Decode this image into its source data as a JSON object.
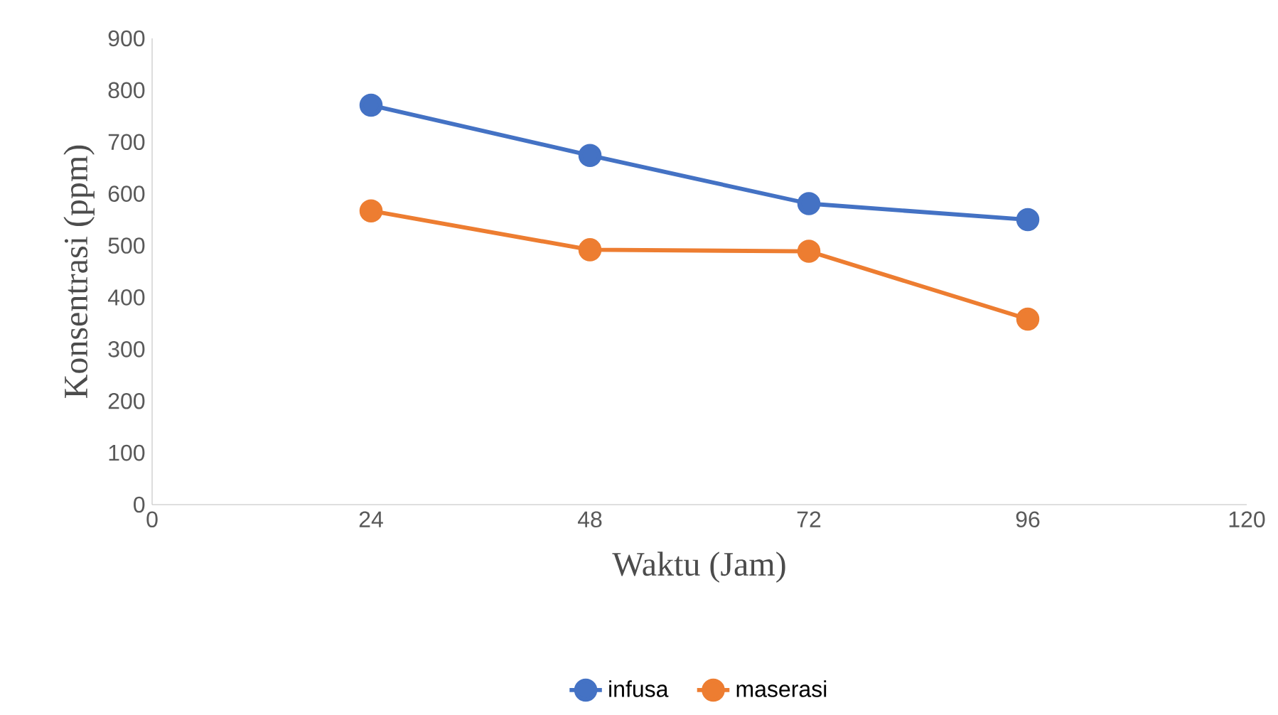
{
  "chart_data": {
    "type": "line",
    "xlabel": "Waktu (Jam)",
    "ylabel": "Konsentrasi (ppm)",
    "x": [
      24,
      48,
      72,
      96
    ],
    "series": [
      {
        "name": "infusa",
        "color": "#4472c4",
        "values": [
          771,
          674,
          581,
          550
        ]
      },
      {
        "name": "maserasi",
        "color": "#ed7d31",
        "values": [
          567,
          492,
          489,
          358
        ]
      }
    ],
    "xlim": [
      0,
      120
    ],
    "xticks": [
      0,
      24,
      48,
      72,
      96,
      120
    ],
    "ylim": [
      0,
      900
    ],
    "yticks": [
      0,
      100,
      200,
      300,
      400,
      500,
      600,
      700,
      800,
      900
    ],
    "grid": false,
    "legend": "bottom",
    "marker": "circle",
    "line_style": "solid"
  }
}
